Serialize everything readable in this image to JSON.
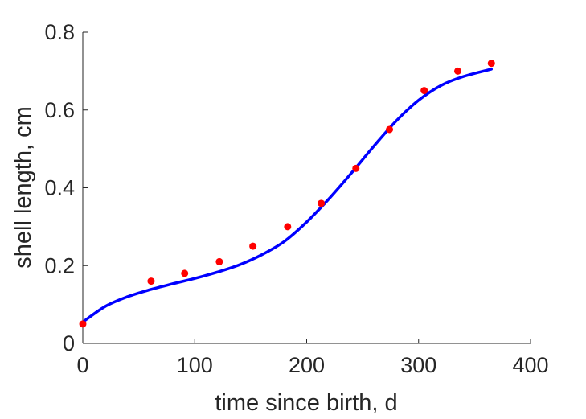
{
  "chart_data": {
    "type": "scatter",
    "title": "",
    "xlabel": "time since birth, d",
    "ylabel": "shell length, cm",
    "xlim": [
      0,
      400
    ],
    "ylim": [
      0,
      0.8
    ],
    "xticks": [
      0,
      100,
      200,
      300,
      400
    ],
    "yticks": [
      0,
      0.2,
      0.4,
      0.6,
      0.8
    ],
    "xtick_labels": [
      "0",
      "100",
      "200",
      "300",
      "400"
    ],
    "ytick_labels": [
      "0",
      "0.2",
      "0.4",
      "0.6",
      "0.8"
    ],
    "grid": false,
    "legend": "none",
    "series": [
      {
        "kind": "scatter",
        "color": "#ff0000",
        "x": [
          0,
          61,
          91,
          122,
          152,
          183,
          213,
          244,
          274,
          305,
          335,
          365
        ],
        "y": [
          0.05,
          0.16,
          0.18,
          0.21,
          0.25,
          0.3,
          0.36,
          0.45,
          0.55,
          0.65,
          0.7,
          0.72
        ]
      },
      {
        "kind": "line",
        "color": "#0000ff",
        "x": [
          0,
          20,
          40,
          60,
          80,
          100,
          120,
          140,
          160,
          180,
          200,
          220,
          240,
          260,
          280,
          300,
          320,
          340,
          365
        ],
        "y": [
          0.055,
          0.095,
          0.12,
          0.138,
          0.153,
          0.167,
          0.183,
          0.202,
          0.228,
          0.262,
          0.312,
          0.372,
          0.438,
          0.507,
          0.572,
          0.625,
          0.663,
          0.686,
          0.705
        ]
      }
    ]
  }
}
